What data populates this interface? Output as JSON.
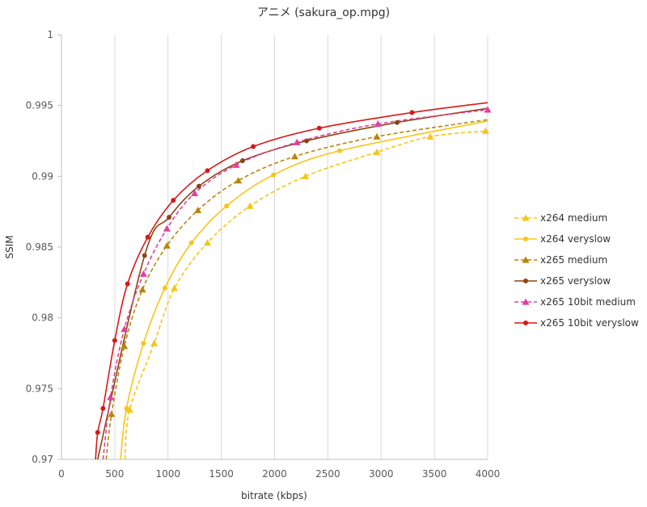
{
  "chart_data": {
    "type": "line",
    "title": "アニメ (sakura_op.mpg)",
    "xlabel": "bitrate (kbps)",
    "ylabel": "SSIM",
    "xlim": [
      0,
      4000
    ],
    "ylim": [
      0.97,
      1.0
    ],
    "xticks": [
      0,
      500,
      1000,
      1500,
      2000,
      2500,
      3000,
      3500,
      4000
    ],
    "yticks": [
      0.97,
      0.975,
      0.98,
      0.985,
      0.99,
      0.995,
      1
    ],
    "ytick_labels": [
      "0.97",
      "0.975",
      "0.98",
      "0.985",
      "0.99",
      "0.995",
      "1"
    ],
    "grid": "vertical",
    "legend": "right",
    "series": [
      {
        "name": "x264 medium",
        "color": "#F5C518",
        "dash": "dashed",
        "marker": "triangle",
        "points": [
          [
            640,
            0.9735
          ],
          [
            870,
            0.9782
          ],
          [
            1060,
            0.9821
          ],
          [
            1370,
            0.9853
          ],
          [
            1770,
            0.9879
          ],
          [
            2290,
            0.99
          ],
          [
            2960,
            0.9917
          ],
          [
            3460,
            0.9928
          ],
          [
            3980,
            0.9932
          ]
        ],
        "curve_start": [
          595,
          0.97
        ],
        "curve_end": [
          4000,
          0.99325
        ]
      },
      {
        "name": "x264 veryslow",
        "color": "#F5C518",
        "dash": "solid",
        "marker": "circle",
        "points": [
          [
            610,
            0.9736
          ],
          [
            770,
            0.9782
          ],
          [
            970,
            0.9821
          ],
          [
            1220,
            0.9853
          ],
          [
            1550,
            0.9879
          ],
          [
            1990,
            0.9901
          ],
          [
            2610,
            0.9918
          ]
        ],
        "curve_start": [
          555,
          0.97
        ],
        "curve_end": [
          4000,
          0.9939
        ]
      },
      {
        "name": "x265 medium",
        "color": "#B8860B",
        "dash": "dashed",
        "marker": "triangle",
        "points": [
          [
            470,
            0.9732
          ],
          [
            590,
            0.978
          ],
          [
            760,
            0.982
          ],
          [
            990,
            0.9851
          ],
          [
            1280,
            0.9876
          ],
          [
            1660,
            0.9897
          ],
          [
            2190,
            0.9914
          ],
          [
            2960,
            0.9928
          ]
        ],
        "curve_start": [
          420,
          0.97
        ],
        "curve_end": [
          4000,
          0.994
        ]
      },
      {
        "name": "x265 veryslow",
        "color": "#8B4513",
        "dash": "solid",
        "marker": "circle",
        "points": [
          [
            780,
            0.9844
          ],
          [
            1010,
            0.9871
          ],
          [
            1290,
            0.9893
          ],
          [
            1700,
            0.9911
          ],
          [
            2300,
            0.9925
          ],
          [
            3150,
            0.9938
          ]
        ],
        "curve_start": [
          340,
          0.97
        ],
        "curve_end": [
          4000,
          0.9948
        ]
      },
      {
        "name": "x265 10bit medium",
        "color": "#E040A0",
        "dash": "dashed",
        "marker": "triangle",
        "points": [
          [
            460,
            0.9744
          ],
          [
            590,
            0.9792
          ],
          [
            770,
            0.9831
          ],
          [
            990,
            0.9863
          ],
          [
            1250,
            0.9888
          ],
          [
            1640,
            0.9908
          ],
          [
            2210,
            0.9924
          ],
          [
            2970,
            0.9937
          ],
          [
            4000,
            0.9947
          ]
        ],
        "curve_start": [
          390,
          0.97
        ],
        "curve_end": [
          4000,
          0.9948
        ]
      },
      {
        "name": "x265 10bit veryslow",
        "color": "#D81818",
        "dash": "solid",
        "marker": "circle",
        "points": [
          [
            340,
            0.9719
          ],
          [
            390,
            0.9736
          ],
          [
            500,
            0.9784
          ],
          [
            620,
            0.9824
          ],
          [
            810,
            0.9857
          ],
          [
            1050,
            0.9883
          ],
          [
            1370,
            0.9904
          ],
          [
            1800,
            0.9921
          ],
          [
            2420,
            0.9934
          ],
          [
            3290,
            0.9945
          ]
        ],
        "curve_start": [
          320,
          0.97
        ],
        "curve_end": [
          4000,
          0.9952
        ]
      }
    ]
  }
}
